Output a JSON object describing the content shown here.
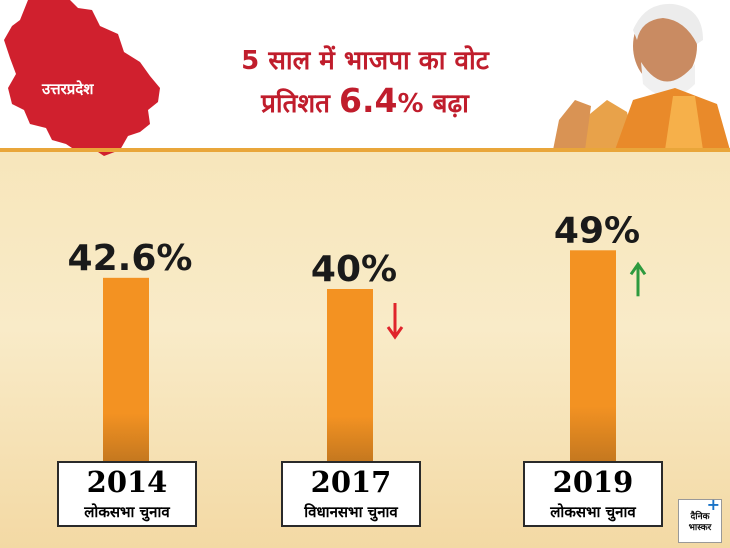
{
  "header": {
    "region_label": "उत्तरप्रदेश",
    "title_line1": "5 साल में भाजपा का वोट",
    "title_line2_prefix": "प्रतिशत ",
    "title_line2_number": "6.4",
    "title_line2_suffix": "% बढ़ा"
  },
  "colors": {
    "bar": "#f39222",
    "title": "#c01d2c",
    "map": "#d0202e",
    "arrow_down": "#e0242b",
    "arrow_up": "#2e9a3e"
  },
  "chart_data": {
    "type": "bar",
    "categories": [
      "2014",
      "2017",
      "2019"
    ],
    "category_names": [
      "लोकसभा चुनाव",
      "विधानसभा चुनाव",
      "लोकसभा चुनाव"
    ],
    "values": [
      42.6,
      40,
      49
    ],
    "value_labels": [
      "42.6%",
      "40%",
      "49%"
    ],
    "trend_icons": [
      "",
      "down-arrow-icon",
      "up-arrow-icon"
    ],
    "title": "5 साल में भाजपा का वोट प्रतिशत 6.4% बढ़ा",
    "xlabel": "",
    "ylabel": "",
    "ylim": [
      0,
      50
    ]
  },
  "logo": {
    "line1": "दैनिक",
    "line2": "भास्कर",
    "plus": "+"
  }
}
